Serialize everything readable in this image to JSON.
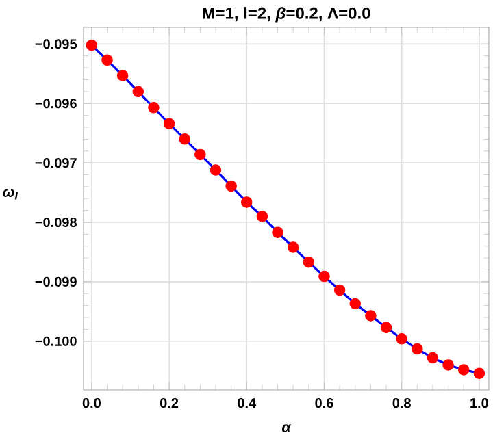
{
  "chart_data": {
    "type": "line",
    "title": "M=1, l=2, *β*=0.2, Λ=0.0",
    "xlabel": "α",
    "ylabel": "ω$_{I}$",
    "x": [
      0,
      0.04,
      0.08,
      0.12,
      0.16,
      0.2,
      0.24,
      0.28,
      0.32,
      0.36,
      0.4,
      0.44,
      0.48,
      0.52,
      0.56,
      0.6,
      0.64,
      0.68,
      0.72,
      0.76,
      0.8,
      0.84,
      0.88,
      0.92,
      0.96,
      1.0
    ],
    "series": [
      {
        "color": "#0000ff",
        "values": [
          -0.09502,
          -0.09527,
          -0.09553,
          -0.0958,
          -0.09607,
          -0.09634,
          -0.0966,
          -0.09686,
          -0.09712,
          -0.09739,
          -0.09766,
          -0.0979,
          -0.09817,
          -0.09842,
          -0.09867,
          -0.09891,
          -0.09914,
          -0.09937,
          -0.09957,
          -0.09977,
          -0.09996,
          -0.10013,
          -0.10028,
          -0.1004,
          -0.10048,
          -0.10054
        ]
      },
      {
        "type": "scatter",
        "color": "#ff0000",
        "marker": "circle",
        "values": [
          -0.09502,
          -0.09527,
          -0.09553,
          -0.0958,
          -0.09607,
          -0.09634,
          -0.0966,
          -0.09686,
          -0.09712,
          -0.09739,
          -0.09766,
          -0.0979,
          -0.09817,
          -0.09842,
          -0.09867,
          -0.09891,
          -0.09914,
          -0.09937,
          -0.09957,
          -0.09977,
          -0.09996,
          -0.10013,
          -0.10028,
          -0.1004,
          -0.10048,
          -0.10054
        ]
      }
    ],
    "xlim": [
      -0.021,
      1.025
    ],
    "ylim": [
      -0.10082,
      -0.09472
    ],
    "xticks": [
      {
        "value": 0,
        "label": "0.0"
      },
      {
        "value": 0.2,
        "label": "0.2"
      },
      {
        "value": 0.4,
        "label": "0.4"
      },
      {
        "value": 0.6,
        "label": "0.6"
      },
      {
        "value": 0.8,
        "label": "0.8"
      },
      {
        "value": 1.0,
        "label": "1.0"
      }
    ],
    "yticks": [
      {
        "value": -0.1,
        "label": "−0.100"
      },
      {
        "value": -0.099,
        "label": "−0.099"
      },
      {
        "value": -0.098,
        "label": "−0.098"
      },
      {
        "value": -0.097,
        "label": "−0.097"
      },
      {
        "value": -0.096,
        "label": "−0.096"
      },
      {
        "value": -0.095,
        "label": "−0.095"
      }
    ],
    "grid": true
  }
}
